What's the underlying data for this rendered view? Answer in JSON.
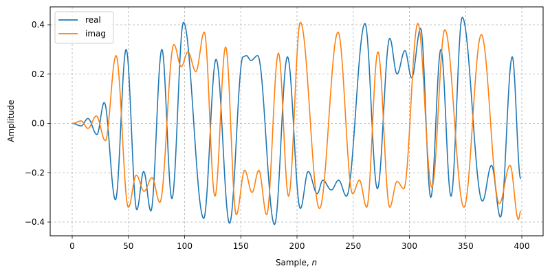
{
  "chart_data": {
    "type": "line",
    "title": "",
    "xlabel": "Sample, n",
    "xlabel_parts": {
      "prefix": "Sample, ",
      "italic": "n"
    },
    "ylabel": "Amplitude",
    "xlim": [
      -20,
      420
    ],
    "ylim": [
      -0.46,
      0.47
    ],
    "xticks": [
      0,
      50,
      100,
      150,
      200,
      250,
      300,
      350,
      400
    ],
    "xtick_labels": [
      "0",
      "50",
      "100",
      "150",
      "200",
      "250",
      "300",
      "350",
      "400"
    ],
    "yticks": [
      -0.4,
      -0.2,
      0.0,
      0.2,
      0.4
    ],
    "ytick_labels": [
      "−0.4",
      "−0.2",
      "0.0",
      "0.2",
      "0.4"
    ],
    "grid": true,
    "legend_position": "upper left",
    "series": [
      {
        "name": "real",
        "color": "#1f77b4",
        "extrema": [
          [
            0,
            0.0
          ],
          [
            8,
            -0.01
          ],
          [
            14,
            0.02
          ],
          [
            22,
            -0.045
          ],
          [
            28.5,
            0.085
          ],
          [
            38.5,
            -0.31
          ],
          [
            48,
            0.3
          ],
          [
            57.5,
            -0.35
          ],
          [
            63.6,
            -0.195
          ],
          [
            70,
            -0.355
          ],
          [
            79.8,
            0.3
          ],
          [
            88.7,
            -0.305
          ],
          [
            99,
            0.41
          ],
          [
            117,
            -0.385
          ],
          [
            128,
            0.26
          ],
          [
            140,
            -0.405
          ],
          [
            152,
            0.27
          ],
          [
            155,
            0.275
          ],
          [
            159,
            0.255
          ],
          [
            165,
            0.275
          ],
          [
            180,
            -0.41
          ],
          [
            191.5,
            0.27
          ],
          [
            203,
            -0.345
          ],
          [
            210,
            -0.195
          ],
          [
            218,
            -0.285
          ],
          [
            223,
            -0.23
          ],
          [
            230.5,
            -0.27
          ],
          [
            237,
            -0.23
          ],
          [
            244,
            -0.295
          ],
          [
            260.5,
            0.405
          ],
          [
            271.5,
            -0.265
          ],
          [
            282.5,
            0.345
          ],
          [
            289,
            0.2
          ],
          [
            296,
            0.295
          ],
          [
            302,
            0.185
          ],
          [
            310,
            0.385
          ],
          [
            319,
            -0.3
          ],
          [
            328,
            0.3
          ],
          [
            337,
            -0.295
          ],
          [
            347,
            0.43
          ],
          [
            365,
            -0.315
          ],
          [
            373,
            -0.17
          ],
          [
            381,
            -0.38
          ],
          [
            391.5,
            0.27
          ],
          [
            399,
            -0.225
          ]
        ]
      },
      {
        "name": "imag",
        "color": "#ff7f0e",
        "extrema": [
          [
            0,
            0.0
          ],
          [
            8,
            0.01
          ],
          [
            14,
            -0.02
          ],
          [
            21.5,
            0.03
          ],
          [
            29.5,
            -0.07
          ],
          [
            39,
            0.275
          ],
          [
            50,
            -0.34
          ],
          [
            57,
            -0.21
          ],
          [
            64,
            -0.275
          ],
          [
            71,
            -0.22
          ],
          [
            78,
            -0.32
          ],
          [
            90.5,
            0.32
          ],
          [
            97,
            0.23
          ],
          [
            103,
            0.29
          ],
          [
            110,
            0.21
          ],
          [
            117.5,
            0.37
          ],
          [
            127,
            -0.295
          ],
          [
            136.5,
            0.31
          ],
          [
            146,
            -0.37
          ],
          [
            153.5,
            -0.19
          ],
          [
            160,
            -0.28
          ],
          [
            166,
            -0.19
          ],
          [
            173,
            -0.37
          ],
          [
            183.5,
            0.285
          ],
          [
            192.5,
            -0.295
          ],
          [
            203,
            0.41
          ],
          [
            220,
            -0.345
          ],
          [
            236.5,
            0.37
          ],
          [
            249.5,
            -0.285
          ],
          [
            255.5,
            -0.23
          ],
          [
            262,
            -0.34
          ],
          [
            272,
            0.29
          ],
          [
            282.5,
            -0.34
          ],
          [
            289,
            -0.235
          ],
          [
            295,
            -0.265
          ],
          [
            307.5,
            0.405
          ],
          [
            320,
            -0.26
          ],
          [
            331.5,
            0.38
          ],
          [
            348.5,
            -0.34
          ],
          [
            364,
            0.36
          ],
          [
            380,
            -0.325
          ],
          [
            389.5,
            -0.17
          ],
          [
            397,
            -0.39
          ],
          [
            399,
            -0.355
          ]
        ]
      }
    ]
  },
  "legend": {
    "items": [
      {
        "label": "real",
        "color": "#1f77b4"
      },
      {
        "label": "imag",
        "color": "#ff7f0e"
      }
    ]
  }
}
